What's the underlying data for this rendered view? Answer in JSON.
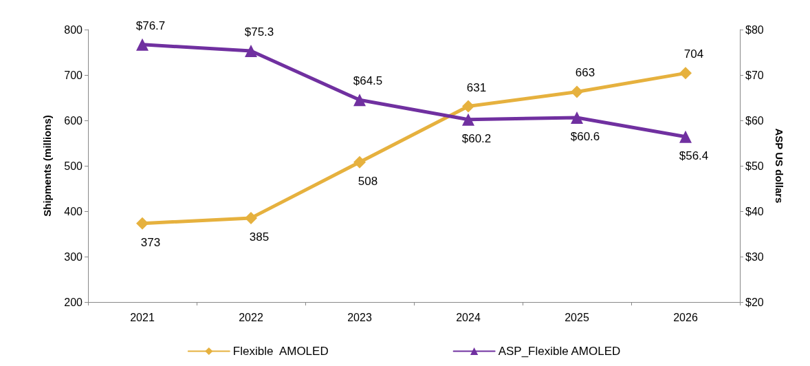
{
  "chart_data": {
    "type": "line",
    "ylabel": "Shipments (millions)",
    "y2label": "ASP US dollars",
    "categories": [
      "2021",
      "2022",
      "2023",
      "2024",
      "2025",
      "2026"
    ],
    "series": [
      {
        "name": "Flexible  AMOLED",
        "color": "#e6b13e",
        "marker": "diamond",
        "values": [
          373,
          385,
          508,
          631,
          663,
          704
        ],
        "value_labels": [
          "373",
          "385",
          "508",
          "631",
          "663",
          "704"
        ]
      },
      {
        "name": "ASP_Flexible AMOLED",
        "color": "#7030a0",
        "marker": "triangle",
        "axis": "y2",
        "values": [
          76.7,
          75.3,
          64.5,
          60.2,
          60.6,
          56.4
        ],
        "value_labels": [
          "$76.7",
          "$75.3",
          "$64.5",
          "$60.2",
          "$60.6",
          "$56.4"
        ]
      }
    ],
    "ylim": [
      200,
      800
    ],
    "yticks": [
      200,
      300,
      400,
      500,
      600,
      700,
      800
    ],
    "y2lim": [
      20,
      80
    ],
    "y2ticks": [
      {
        "value": 20,
        "label": "$20"
      },
      {
        "value": 30,
        "label": "$30"
      },
      {
        "value": 40,
        "label": "$40"
      },
      {
        "value": 50,
        "label": "$50"
      },
      {
        "value": 60,
        "label": "$60"
      },
      {
        "value": 70,
        "label": "$70"
      },
      {
        "value": 80,
        "label": "$80"
      }
    ],
    "grid": false,
    "legend": "bottom",
    "line_style": "solid"
  }
}
